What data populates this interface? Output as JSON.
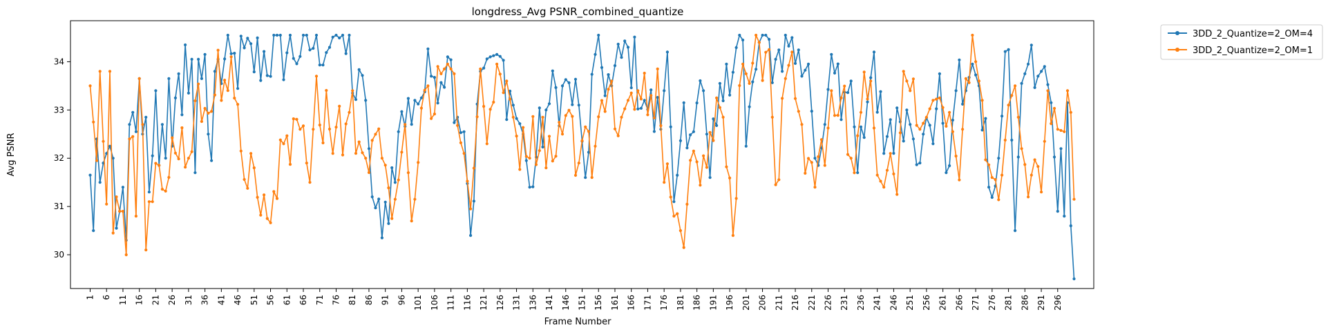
{
  "chart_data": {
    "type": "line",
    "title": "longdress_Avg PSNR_combined_quantize",
    "xlabel": "Frame Number",
    "ylabel": "Avg PSNR",
    "xlim": [
      -5,
      307
    ],
    "ylim": [
      29.3,
      34.85
    ],
    "x_ticks": [
      1,
      6,
      11,
      16,
      21,
      26,
      31,
      36,
      41,
      46,
      51,
      56,
      61,
      66,
      71,
      76,
      81,
      86,
      91,
      96,
      101,
      106,
      111,
      116,
      121,
      126,
      131,
      136,
      141,
      146,
      151,
      156,
      161,
      166,
      171,
      176,
      181,
      186,
      191,
      196,
      201,
      206,
      211,
      216,
      221,
      226,
      231,
      236,
      241,
      246,
      251,
      256,
      261,
      266,
      271,
      276,
      281,
      286,
      291,
      296
    ],
    "y_ticks": [
      30,
      31,
      32,
      33,
      34
    ],
    "x_start": 1,
    "x_end": 300,
    "legend_position": "outside-top-right",
    "grid": false,
    "series": [
      {
        "name": "3DD_2_Quantize=2_OM=4",
        "color": "#1f77b4",
        "anchors": [
          [
            1,
            31.65
          ],
          [
            2,
            30.5
          ],
          [
            3,
            32.4
          ],
          [
            4,
            31.5
          ],
          [
            5,
            31.9
          ],
          [
            6,
            32.1
          ],
          [
            7,
            32.25
          ],
          [
            8,
            32.0
          ],
          [
            9,
            30.55
          ],
          [
            10,
            30.9
          ],
          [
            11,
            31.4
          ],
          [
            12,
            30.3
          ],
          [
            13,
            32.7
          ],
          [
            14,
            32.95
          ],
          [
            15,
            32.55
          ],
          [
            16,
            33.65
          ],
          [
            17,
            32.5
          ],
          [
            18,
            32.85
          ],
          [
            19,
            31.3
          ],
          [
            20,
            32.05
          ],
          [
            21,
            33.4
          ],
          [
            22,
            31.85
          ],
          [
            23,
            32.7
          ],
          [
            24,
            32.0
          ],
          [
            25,
            33.65
          ],
          [
            26,
            32.25
          ],
          [
            27,
            33.25
          ],
          [
            28,
            33.75
          ],
          [
            29,
            32.9
          ],
          [
            30,
            34.35
          ],
          [
            31,
            33.35
          ],
          [
            32,
            34.05
          ],
          [
            33,
            31.7
          ],
          [
            34,
            34.05
          ],
          [
            35,
            33.65
          ],
          [
            36,
            34.15
          ],
          [
            37,
            32.5
          ],
          [
            38,
            31.95
          ],
          [
            39,
            33.8
          ],
          [
            80,
            34.6
          ],
          [
            81,
            33.35
          ],
          [
            85,
            33.2
          ],
          [
            87,
            31.2
          ],
          [
            90,
            30.35
          ],
          [
            95,
            32.55
          ],
          [
            100,
            33.2
          ],
          [
            105,
            33.7
          ],
          [
            110,
            34.1
          ],
          [
            115,
            32.55
          ],
          [
            117,
            30.4
          ],
          [
            120,
            33.8
          ],
          [
            123,
            34.1
          ],
          [
            125,
            34.15
          ],
          [
            130,
            33.1
          ],
          [
            133,
            32.5
          ],
          [
            135,
            31.4
          ],
          [
            140,
            33.0
          ],
          [
            145,
            33.5
          ],
          [
            150,
            33.1
          ],
          [
            152,
            31.6
          ],
          [
            155,
            34.15
          ],
          [
            160,
            33.5
          ],
          [
            165,
            34.3
          ],
          [
            170,
            33.2
          ],
          [
            175,
            32.6
          ],
          [
            177,
            34.2
          ],
          [
            179,
            31.1
          ],
          [
            182,
            33.15
          ],
          [
            185,
            32.55
          ],
          [
            188,
            33.4
          ],
          [
            190,
            31.6
          ],
          [
            195,
            33.95
          ],
          [
            200,
            34.45
          ],
          [
            201,
            32.25
          ],
          [
            205,
            34.4
          ],
          [
            210,
            34.05
          ],
          [
            215,
            34.5
          ],
          [
            218,
            33.7
          ],
          [
            220,
            33.95
          ],
          [
            222,
            32.0
          ],
          [
            225,
            32.7
          ],
          [
            227,
            34.15
          ],
          [
            230,
            32.8
          ],
          [
            233,
            33.6
          ],
          [
            235,
            31.7
          ],
          [
            240,
            34.2
          ],
          [
            243,
            32.1
          ],
          [
            245,
            32.8
          ],
          [
            250,
            33.0
          ],
          [
            252,
            32.4
          ],
          [
            255,
            32.5
          ],
          [
            258,
            32.3
          ],
          [
            260,
            33.75
          ],
          [
            262,
            31.7
          ],
          [
            265,
            33.4
          ],
          [
            268,
            33.4
          ],
          [
            270,
            33.95
          ],
          [
            272,
            33.5
          ],
          [
            275,
            31.4
          ],
          [
            278,
            32.0
          ],
          [
            281,
            34.25
          ],
          [
            283,
            30.5
          ],
          [
            285,
            33.55
          ],
          [
            287,
            33.95
          ],
          [
            290,
            33.7
          ],
          [
            292,
            33.9
          ],
          [
            294,
            33.15
          ],
          [
            296,
            30.9
          ],
          [
            297,
            32.2
          ],
          [
            298,
            30.8
          ],
          [
            299,
            33.15
          ],
          [
            300,
            30.6
          ],
          [
            301,
            29.5
          ]
        ]
      },
      {
        "name": "3DD_2_Quantize=2_OM=1",
        "color": "#ff7f0e",
        "anchors": [
          [
            1,
            33.5
          ],
          [
            2,
            32.75
          ],
          [
            3,
            31.95
          ],
          [
            4,
            33.8
          ],
          [
            5,
            32.35
          ],
          [
            6,
            31.05
          ],
          [
            7,
            33.8
          ],
          [
            8,
            30.45
          ],
          [
            9,
            31.2
          ],
          [
            10,
            30.9
          ],
          [
            11,
            30.9
          ],
          [
            12,
            29.9
          ],
          [
            13,
            32.4
          ],
          [
            14,
            32.45
          ],
          [
            15,
            30.8
          ],
          [
            16,
            33.65
          ],
          [
            17,
            32.7
          ],
          [
            18,
            30.1
          ],
          [
            19,
            31.1
          ],
          [
            20,
            31.1
          ],
          [
            44,
            34.1
          ],
          [
            47,
            32.15
          ],
          [
            50,
            32.1
          ],
          [
            55,
            30.75
          ],
          [
            60,
            32.3
          ],
          [
            65,
            32.6
          ],
          [
            68,
            31.5
          ],
          [
            70,
            33.7
          ],
          [
            75,
            32.1
          ],
          [
            80,
            32.95
          ],
          [
            85,
            32.0
          ],
          [
            90,
            32.0
          ],
          [
            93,
            30.75
          ],
          [
            95,
            31.55
          ],
          [
            97,
            32.7
          ],
          [
            99,
            30.7
          ],
          [
            100,
            31.15
          ],
          [
            104,
            33.5
          ],
          [
            108,
            33.75
          ],
          [
            110,
            33.95
          ],
          [
            112,
            33.75
          ],
          [
            115,
            32.1
          ],
          [
            117,
            30.95
          ],
          [
            120,
            33.85
          ],
          [
            122,
            32.3
          ],
          [
            125,
            33.95
          ],
          [
            128,
            33.6
          ],
          [
            130,
            32.85
          ],
          [
            135,
            32.0
          ],
          [
            139,
            32.85
          ],
          [
            140,
            31.8
          ],
          [
            145,
            32.5
          ],
          [
            150,
            31.9
          ],
          [
            155,
            32.25
          ],
          [
            160,
            33.6
          ],
          [
            163,
            32.85
          ],
          [
            165,
            33.2
          ],
          [
            168,
            33.4
          ],
          [
            171,
            32.9
          ],
          [
            174,
            33.85
          ],
          [
            176,
            31.5
          ],
          [
            179,
            30.8
          ],
          [
            180,
            30.85
          ],
          [
            182,
            30.15
          ],
          [
            185,
            32.15
          ],
          [
            188,
            32.05
          ],
          [
            192,
            33.25
          ],
          [
            194,
            32.85
          ],
          [
            197,
            30.4
          ],
          [
            200,
            33.95
          ],
          [
            202,
            33.55
          ],
          [
            205,
            34.4
          ],
          [
            208,
            34.25
          ],
          [
            210,
            31.45
          ],
          [
            213,
            33.65
          ],
          [
            215,
            34.2
          ],
          [
            218,
            32.7
          ],
          [
            222,
            31.4
          ],
          [
            225,
            31.85
          ],
          [
            227,
            33.4
          ],
          [
            230,
            33.25
          ],
          [
            233,
            32.0
          ],
          [
            236,
            32.95
          ],
          [
            239,
            33.6
          ],
          [
            241,
            31.65
          ],
          [
            243,
            31.4
          ],
          [
            245,
            32.1
          ],
          [
            247,
            31.25
          ],
          [
            249,
            33.8
          ],
          [
            251,
            33.4
          ],
          [
            254,
            32.6
          ],
          [
            256,
            32.85
          ],
          [
            258,
            33.2
          ],
          [
            260,
            33.25
          ],
          [
            263,
            32.95
          ],
          [
            266,
            31.55
          ],
          [
            268,
            33.65
          ],
          [
            271,
            34.0
          ],
          [
            273,
            33.2
          ],
          [
            276,
            31.6
          ],
          [
            279,
            31.65
          ],
          [
            281,
            33.1
          ],
          [
            283,
            33.5
          ],
          [
            285,
            32.2
          ],
          [
            288,
            31.65
          ],
          [
            291,
            31.3
          ],
          [
            293,
            33.4
          ],
          [
            296,
            32.6
          ],
          [
            298,
            32.55
          ],
          [
            299,
            33.4
          ],
          [
            300,
            32.95
          ],
          [
            301,
            31.15
          ]
        ]
      }
    ]
  }
}
